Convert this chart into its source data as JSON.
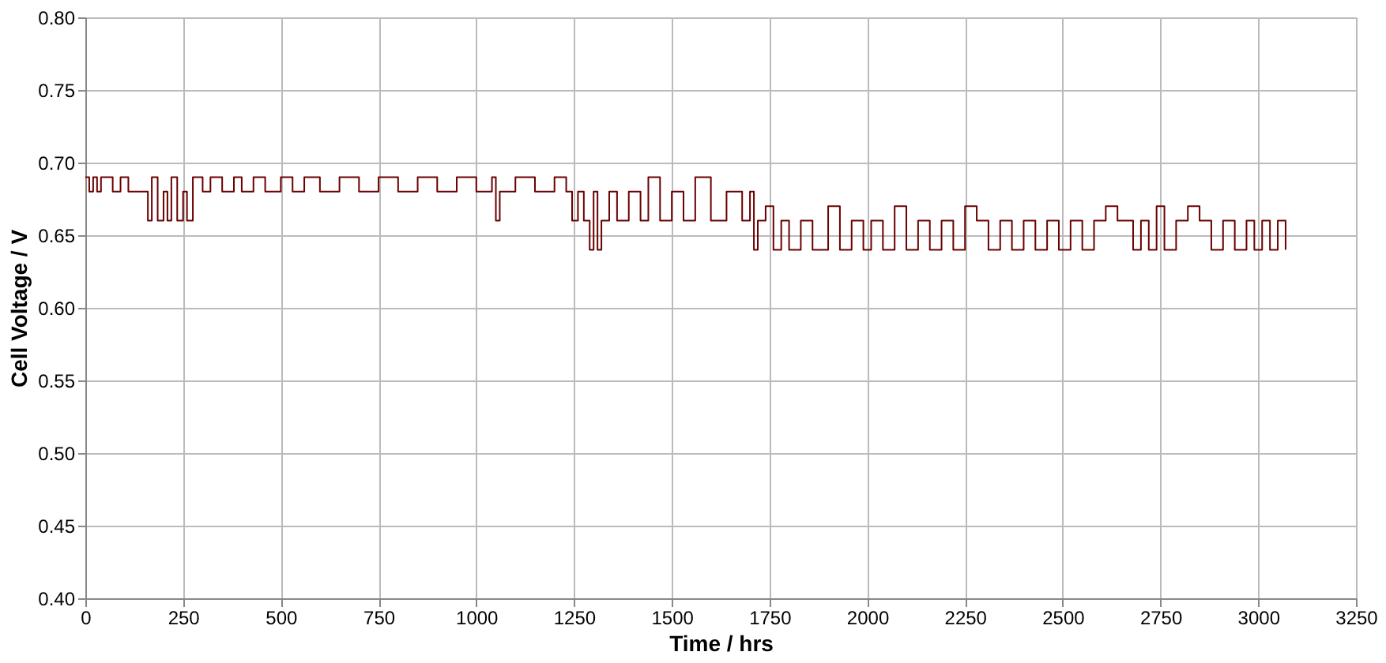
{
  "chart_data": {
    "type": "step",
    "xlabel": "Time / hrs",
    "ylabel": "Cell Voltage / V",
    "xlim": [
      0,
      3250
    ],
    "xticks": [
      0,
      250,
      500,
      750,
      {
        "value": 1000,
        "label": "1000"
      },
      {
        "value": 1250,
        "label": "1250"
      },
      {
        "value": 1500,
        "label": "1500"
      },
      {
        "value": 1750,
        "label": "1750"
      },
      {
        "value": 2000,
        "label": "2000"
      },
      {
        "value": 2250,
        "label": "2250"
      },
      {
        "value": 2500,
        "label": "2500"
      },
      {
        "value": 2750,
        "label": "2750"
      },
      {
        "value": 3000,
        "label": "3000"
      },
      {
        "value": 3250,
        "label": "3250"
      }
    ],
    "ylim": [
      0.4,
      0.8
    ],
    "yticks": [
      {
        "value": 0.4,
        "label": "0.40"
      },
      0.45,
      {
        "value": 0.5,
        "label": "0.50"
      },
      0.55,
      {
        "value": 0.6,
        "label": "0.60"
      },
      0.65,
      {
        "value": 0.7,
        "label": "0.70"
      },
      0.75,
      {
        "value": 0.8,
        "label": "0.80"
      }
    ],
    "grid": true,
    "marker": "none",
    "line_style": "solid",
    "series": [
      {
        "color": "#6b0000",
        "x": [
          0,
          10,
          20,
          30,
          40,
          55,
          70,
          90,
          110,
          130,
          150,
          160,
          170,
          185,
          200,
          210,
          220,
          235,
          250,
          260,
          275,
          300,
          320,
          350,
          380,
          400,
          430,
          460,
          500,
          530,
          560,
          600,
          650,
          700,
          750,
          800,
          850,
          900,
          950,
          1000,
          1040,
          1050,
          1060,
          1100,
          1150,
          1200,
          1230,
          1245,
          1260,
          1275,
          1290,
          1300,
          1310,
          1320,
          1340,
          1360,
          1390,
          1420,
          1440,
          1470,
          1500,
          1530,
          1560,
          1600,
          1640,
          1680,
          1700,
          1710,
          1720,
          1740,
          1760,
          1780,
          1800,
          1830,
          1860,
          1900,
          1930,
          1960,
          1990,
          2010,
          2040,
          2070,
          2100,
          2130,
          2160,
          2190,
          2220,
          2250,
          2280,
          2310,
          2340,
          2370,
          2400,
          2430,
          2460,
          2490,
          2520,
          2550,
          2580,
          2610,
          2640,
          2680,
          2700,
          2720,
          2740,
          2760,
          2790,
          2820,
          2850,
          2880,
          2910,
          2940,
          2970,
          2990,
          3010,
          3030,
          3050,
          3070
        ],
        "values": [
          0.69,
          0.68,
          0.69,
          0.68,
          0.69,
          0.69,
          0.68,
          0.69,
          0.68,
          0.68,
          0.68,
          0.66,
          0.69,
          0.66,
          0.68,
          0.66,
          0.69,
          0.66,
          0.68,
          0.66,
          0.69,
          0.68,
          0.69,
          0.68,
          0.69,
          0.68,
          0.69,
          0.68,
          0.69,
          0.68,
          0.69,
          0.68,
          0.69,
          0.68,
          0.69,
          0.68,
          0.69,
          0.68,
          0.69,
          0.68,
          0.69,
          0.66,
          0.68,
          0.69,
          0.68,
          0.69,
          0.68,
          0.66,
          0.68,
          0.66,
          0.64,
          0.68,
          0.64,
          0.66,
          0.68,
          0.66,
          0.68,
          0.66,
          0.69,
          0.66,
          0.68,
          0.66,
          0.69,
          0.66,
          0.68,
          0.66,
          0.68,
          0.64,
          0.66,
          0.67,
          0.64,
          0.66,
          0.64,
          0.66,
          0.64,
          0.67,
          0.64,
          0.66,
          0.64,
          0.66,
          0.64,
          0.67,
          0.64,
          0.66,
          0.64,
          0.66,
          0.64,
          0.67,
          0.66,
          0.64,
          0.66,
          0.64,
          0.66,
          0.64,
          0.66,
          0.64,
          0.66,
          0.64,
          0.66,
          0.67,
          0.66,
          0.64,
          0.66,
          0.64,
          0.67,
          0.64,
          0.66,
          0.67,
          0.66,
          0.64,
          0.66,
          0.64,
          0.66,
          0.64,
          0.66,
          0.64,
          0.66,
          0.64
        ]
      }
    ]
  }
}
